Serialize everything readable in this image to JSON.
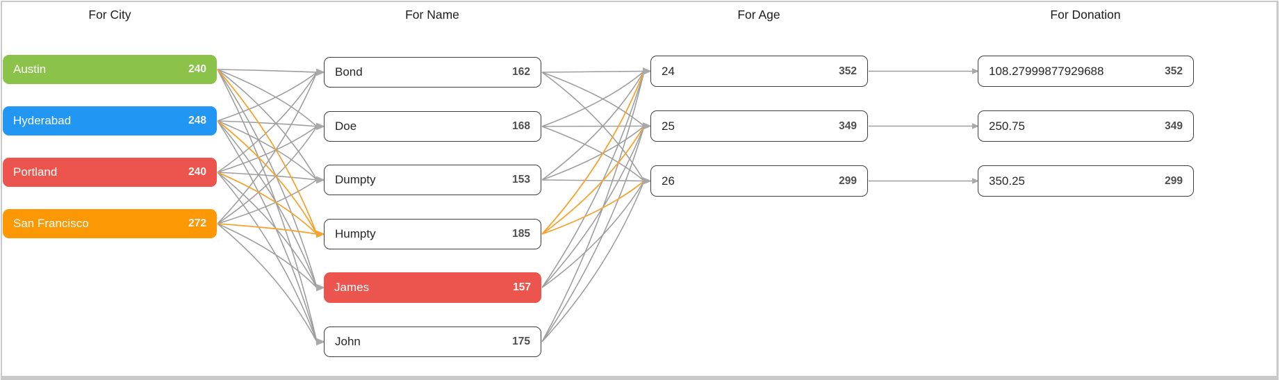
{
  "chart_data": {
    "type": "flow",
    "description": "Four-column flow chart linking records by City, Name, Age and Donation; node badges show record counts.",
    "columns": [
      {
        "title": "For City",
        "nodes": [
          {
            "label": "Austin",
            "value": "240",
            "fill": "#8BC34A"
          },
          {
            "label": "Hyderabad",
            "value": "248",
            "fill": "#2196F3"
          },
          {
            "label": "Portland",
            "value": "240",
            "fill": "#EC544E"
          },
          {
            "label": "San Francisco",
            "value": "272",
            "fill": "#FB9804"
          }
        ]
      },
      {
        "title": "For Name",
        "nodes": [
          {
            "label": "Bond",
            "value": "162"
          },
          {
            "label": "Doe",
            "value": "168"
          },
          {
            "label": "Dumpty",
            "value": "153"
          },
          {
            "label": "Humpty",
            "value": "185"
          },
          {
            "label": "James",
            "value": "157",
            "fill": "#EC544E"
          },
          {
            "label": "John",
            "value": "175"
          }
        ]
      },
      {
        "title": "For Age",
        "nodes": [
          {
            "label": "24",
            "value": "352"
          },
          {
            "label": "25",
            "value": "349"
          },
          {
            "label": "26",
            "value": "299"
          }
        ]
      },
      {
        "title": "For Donation",
        "nodes": [
          {
            "label": "108.27999877929688",
            "value": "352"
          },
          {
            "label": "250.75",
            "value": "349"
          },
          {
            "label": "350.25",
            "value": "299"
          }
        ]
      }
    ],
    "links": {
      "city_to_name": [
        [
          0,
          0
        ],
        [
          0,
          1
        ],
        [
          0,
          2
        ],
        [
          0,
          3
        ],
        [
          0,
          4
        ],
        [
          0,
          5
        ],
        [
          1,
          0
        ],
        [
          1,
          1
        ],
        [
          1,
          2
        ],
        [
          1,
          3
        ],
        [
          1,
          4
        ],
        [
          1,
          5
        ],
        [
          2,
          0
        ],
        [
          2,
          1
        ],
        [
          2,
          2
        ],
        [
          2,
          3
        ],
        [
          2,
          4
        ],
        [
          2,
          5
        ],
        [
          3,
          0
        ],
        [
          3,
          1
        ],
        [
          3,
          2
        ],
        [
          3,
          3
        ],
        [
          3,
          4
        ],
        [
          3,
          5
        ]
      ],
      "name_to_age": [
        [
          0,
          0
        ],
        [
          0,
          1
        ],
        [
          0,
          2
        ],
        [
          1,
          0
        ],
        [
          1,
          1
        ],
        [
          1,
          2
        ],
        [
          2,
          0
        ],
        [
          2,
          1
        ],
        [
          2,
          2
        ],
        [
          3,
          0
        ],
        [
          3,
          1
        ],
        [
          3,
          2
        ],
        [
          4,
          0
        ],
        [
          4,
          1
        ],
        [
          4,
          2
        ],
        [
          5,
          0
        ],
        [
          5,
          1
        ],
        [
          5,
          2
        ]
      ],
      "age_to_donation": [
        [
          0,
          0
        ],
        [
          1,
          1
        ],
        [
          2,
          2
        ]
      ]
    },
    "highlight": {
      "column_title": "For Name",
      "node_index": 3,
      "node_label": "Humpty"
    },
    "selected": {
      "column_title": "For Name",
      "node_index": 4,
      "node_label": "James"
    }
  },
  "style": {
    "link_color": "#9E9E9E",
    "highlight_link_color": "#F5A32F",
    "arrow_color": "#A9A9A9",
    "highlight_arrow_color": "#F5A32F",
    "node_border_color": "#3D3D3D",
    "frame_border_color": "#C9C9C9",
    "selected_fill": "#EC544E",
    "background": "#FFFFFF"
  }
}
